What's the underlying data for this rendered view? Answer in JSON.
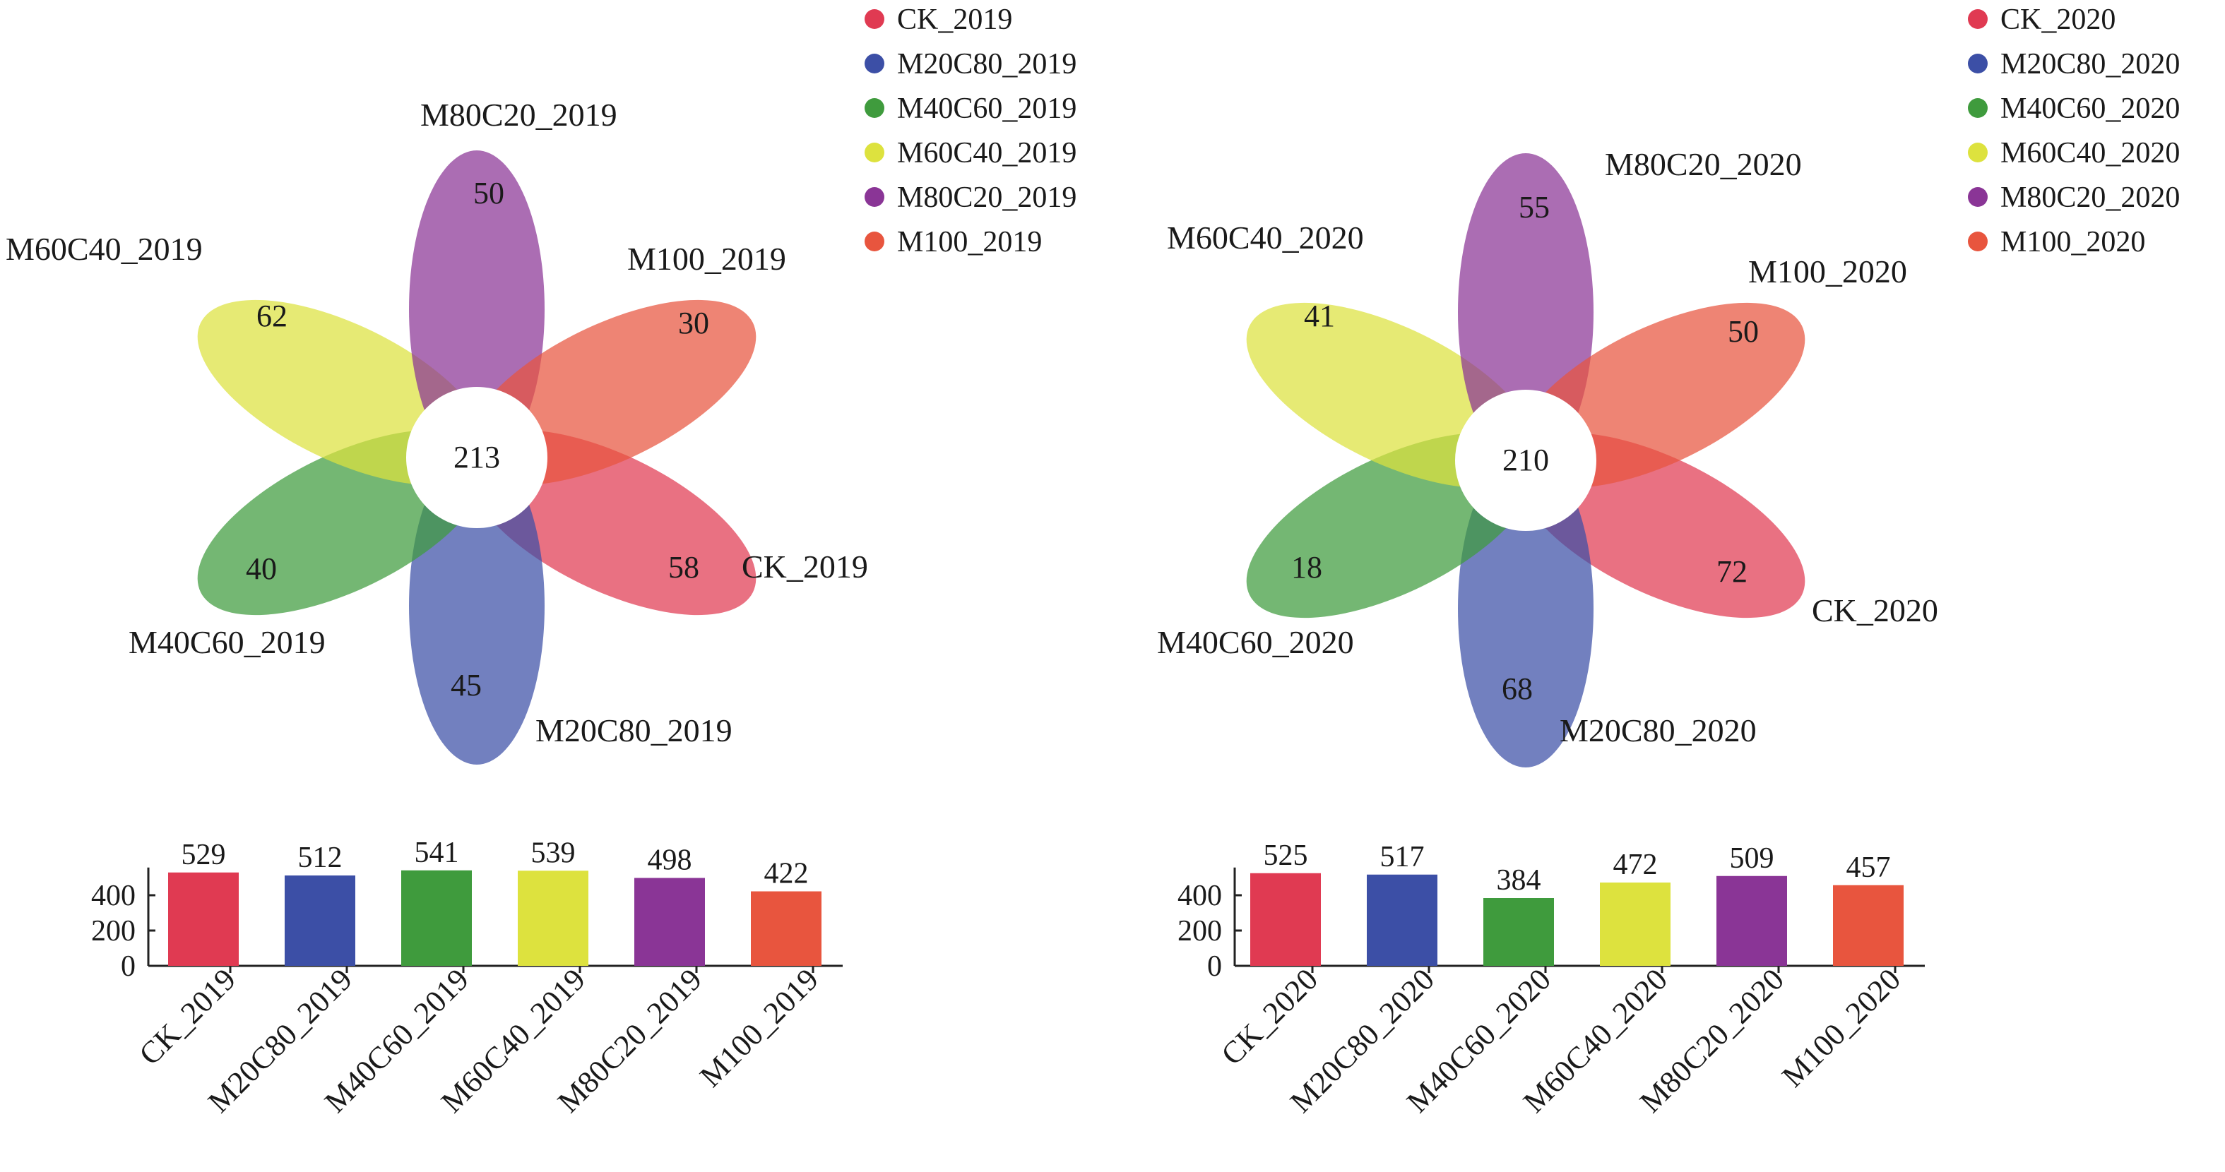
{
  "chart_data": [
    {
      "type": "venn-flower",
      "core_value": 213,
      "petals": [
        {
          "name": "CK_2019",
          "unique": 58,
          "color": "#e03a52"
        },
        {
          "name": "M20C80_2019",
          "unique": 45,
          "color": "#3c4fa6"
        },
        {
          "name": "M40C60_2019",
          "unique": 40,
          "color": "#3f9b3d"
        },
        {
          "name": "M60C40_2019",
          "unique": 62,
          "color": "#dde23e"
        },
        {
          "name": "M80C20_2019",
          "unique": 50,
          "color": "#8a3596"
        },
        {
          "name": "M100_2019",
          "unique": 30,
          "color": "#e8553e"
        }
      ],
      "legend": [
        "CK_2019",
        "M20C80_2019",
        "M40C60_2019",
        "M60C40_2019",
        "M80C20_2019",
        "M100_2019"
      ]
    },
    {
      "type": "bar",
      "categories": [
        "CK_2019",
        "M20C80_2019",
        "M40C60_2019",
        "M60C40_2019",
        "M80C20_2019",
        "M100_2019"
      ],
      "values": [
        529,
        512,
        541,
        539,
        498,
        422
      ],
      "colors": [
        "#e03a52",
        "#3c4fa6",
        "#3f9b3d",
        "#dde23e",
        "#8a3596",
        "#e8553e"
      ],
      "ylim": [
        0,
        541
      ],
      "yticks": [
        0,
        200,
        400
      ]
    },
    {
      "type": "venn-flower",
      "core_value": 210,
      "petals": [
        {
          "name": "CK_2020",
          "unique": 72,
          "color": "#e03a52"
        },
        {
          "name": "M20C80_2020",
          "unique": 68,
          "color": "#3c4fa6"
        },
        {
          "name": "M40C60_2020",
          "unique": 18,
          "color": "#3f9b3d"
        },
        {
          "name": "M60C40_2020",
          "unique": 41,
          "color": "#dde23e"
        },
        {
          "name": "M80C20_2020",
          "unique": 55,
          "color": "#8a3596"
        },
        {
          "name": "M100_2020",
          "unique": 50,
          "color": "#e8553e"
        }
      ],
      "legend": [
        "CK_2020",
        "M20C80_2020",
        "M40C60_2020",
        "M60C40_2020",
        "M80C20_2020",
        "M100_2020"
      ]
    },
    {
      "type": "bar",
      "categories": [
        "CK_2020",
        "M20C80_2020",
        "M40C60_2020",
        "M60C40_2020",
        "M80C20_2020",
        "M100_2020"
      ],
      "values": [
        525,
        517,
        384,
        472,
        509,
        457
      ],
      "colors": [
        "#e03a52",
        "#3c4fa6",
        "#3f9b3d",
        "#dde23e",
        "#8a3596",
        "#e8553e"
      ],
      "ylim": [
        0,
        541
      ],
      "yticks": [
        0,
        200,
        400
      ]
    }
  ]
}
